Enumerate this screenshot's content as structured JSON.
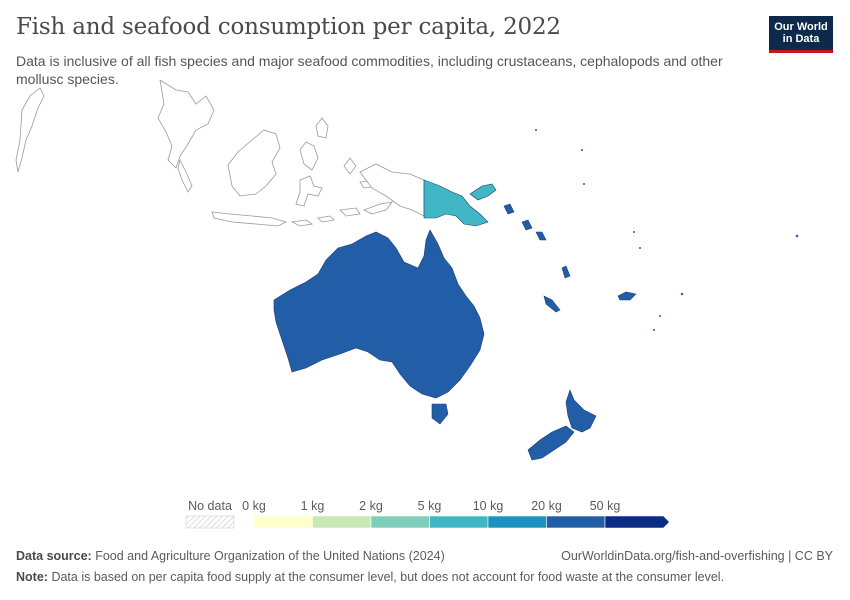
{
  "header": {
    "title": "Fish and seafood consumption per capita, 2022",
    "subtitle": "Data is inclusive of all fish species and major seafood commodities, including crustaceans, cephalopods and other mollusc species."
  },
  "logo": {
    "line1": "Our World",
    "line2": "in Data"
  },
  "legend": {
    "no_data_label": "No data",
    "bins": [
      {
        "label": "0 kg",
        "color": "#ffffcc"
      },
      {
        "label": "1 kg",
        "color": "#c7e9b4"
      },
      {
        "label": "2 kg",
        "color": "#7fcdbb"
      },
      {
        "label": "5 kg",
        "color": "#41b6c4"
      },
      {
        "label": "10 kg",
        "color": "#1d91c0"
      },
      {
        "label": "20 kg",
        "color": "#225ea8"
      },
      {
        "label": "50 kg",
        "color": "#0c2c84"
      }
    ]
  },
  "map": {
    "region": "Oceania",
    "countries": [
      {
        "name": "Australia",
        "bin": "20–50 kg",
        "color": "#225ea8"
      },
      {
        "name": "New Zealand",
        "bin": "20–50 kg",
        "color": "#225ea8"
      },
      {
        "name": "Papua New Guinea",
        "bin": "5–10 kg",
        "color": "#41b6c4"
      },
      {
        "name": "Solomon Islands",
        "bin": "20–50 kg",
        "color": "#225ea8"
      },
      {
        "name": "Vanuatu",
        "bin": "20–50 kg",
        "color": "#225ea8"
      },
      {
        "name": "New Caledonia",
        "bin": "20–50 kg",
        "color": "#225ea8"
      },
      {
        "name": "Fiji",
        "bin": "20–50 kg",
        "color": "#225ea8"
      }
    ],
    "colors": {
      "no_data_fill": "#ffffff",
      "outline": "#9a9a9a",
      "country_stroke": "#1f3f6e"
    }
  },
  "footer": {
    "source_label": "Data source:",
    "source_text": "Food and Agriculture Organization of the United Nations (2024)",
    "url": "OurWorldinData.org/fish-and-overfishing | CC BY",
    "note_label": "Note:",
    "note_text": "Data is based on per capita food supply at the consumer level, but does not account for food waste at the consumer level."
  }
}
